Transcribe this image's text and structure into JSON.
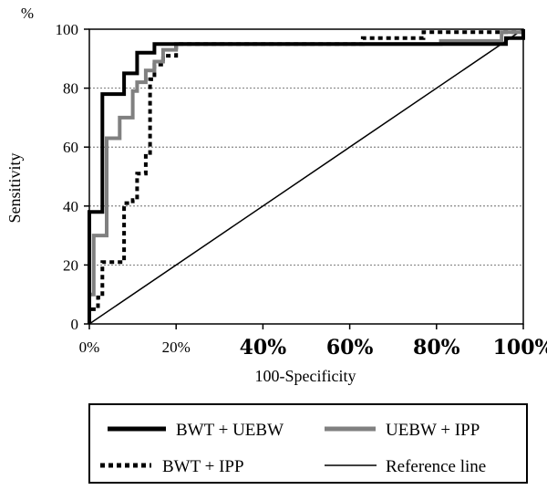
{
  "chart_data": {
    "type": "line",
    "title": "",
    "y_unit": "%",
    "xlabel": "100-Specificity",
    "ylabel": "Sensitivity",
    "xlim": [
      0,
      100
    ],
    "ylim": [
      0,
      100
    ],
    "y_ticks": [
      "0",
      "20",
      "40",
      "60",
      "80",
      "100"
    ],
    "x_ticks": [
      "0%",
      "20%",
      "40%",
      "60%",
      "80%",
      "100%"
    ],
    "grid": "horizontal dashed",
    "legend_position": "bottom",
    "series": [
      {
        "name": "BWT + UEBW",
        "color": "#000000",
        "style": "solid-thick",
        "points": [
          [
            0,
            0
          ],
          [
            0,
            38
          ],
          [
            3,
            38
          ],
          [
            3,
            78
          ],
          [
            8,
            78
          ],
          [
            8,
            85
          ],
          [
            11,
            85
          ],
          [
            11,
            92
          ],
          [
            15,
            92
          ],
          [
            15,
            95
          ],
          [
            96,
            95
          ],
          [
            96,
            97
          ],
          [
            100,
            97
          ],
          [
            100,
            100
          ]
        ]
      },
      {
        "name": "UEBW + IPP",
        "color": "#808080",
        "style": "solid-thick",
        "points": [
          [
            0,
            0
          ],
          [
            0,
            10
          ],
          [
            1,
            10
          ],
          [
            1,
            30
          ],
          [
            4,
            30
          ],
          [
            4,
            63
          ],
          [
            7,
            63
          ],
          [
            7,
            70
          ],
          [
            10,
            70
          ],
          [
            10,
            79
          ],
          [
            11,
            79
          ],
          [
            11,
            82
          ],
          [
            13,
            82
          ],
          [
            13,
            86
          ],
          [
            15,
            86
          ],
          [
            15,
            89
          ],
          [
            17,
            89
          ],
          [
            17,
            93
          ],
          [
            20,
            93
          ],
          [
            20,
            95
          ],
          [
            81,
            95
          ],
          [
            81,
            96
          ],
          [
            95,
            96
          ],
          [
            95,
            99
          ],
          [
            100,
            99
          ]
        ]
      },
      {
        "name": "BWT + IPP",
        "color": "#000000",
        "style": "dotted-thick",
        "points": [
          [
            0,
            0
          ],
          [
            0,
            5
          ],
          [
            2,
            5
          ],
          [
            2,
            9
          ],
          [
            3,
            9
          ],
          [
            3,
            21
          ],
          [
            8,
            21
          ],
          [
            8,
            41
          ],
          [
            10,
            41
          ],
          [
            10,
            42
          ],
          [
            11,
            42
          ],
          [
            11,
            51
          ],
          [
            13,
            51
          ],
          [
            13,
            57
          ],
          [
            14,
            57
          ],
          [
            14,
            83
          ],
          [
            15,
            83
          ],
          [
            15,
            88
          ],
          [
            17,
            88
          ],
          [
            17,
            91
          ],
          [
            20,
            91
          ],
          [
            20,
            95
          ],
          [
            63,
            95
          ],
          [
            63,
            97
          ],
          [
            77,
            97
          ],
          [
            77,
            99
          ],
          [
            100,
            99
          ]
        ]
      },
      {
        "name": "Reference line",
        "color": "#000000",
        "style": "solid-thin",
        "points": [
          [
            0,
            0
          ],
          [
            100,
            100
          ]
        ]
      }
    ]
  }
}
